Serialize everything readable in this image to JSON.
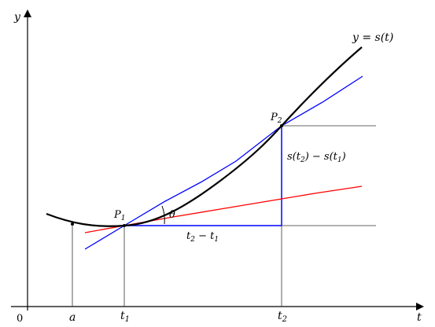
{
  "axes": {
    "y_label": "y",
    "t_label": "t",
    "origin_label": "0"
  },
  "ticks": {
    "a": "a",
    "t1": "t",
    "t1_sub": "1",
    "t2": "t",
    "t2_sub": "2"
  },
  "points": {
    "p1": "P",
    "p1_sub": "1",
    "p2": "P",
    "p2_sub": "2"
  },
  "curve_label": "y = s(t)",
  "angle_label": "θ",
  "delta_t": {
    "a": "t",
    "a_sub": "2",
    "minus": " − ",
    "b": "t",
    "b_sub": "1"
  },
  "delta_s": {
    "s1": "s(t",
    "s1_sub": "2",
    "mid": ") − s(t",
    "s2_sub": "1",
    "end": ")"
  },
  "colors": {
    "curve": "#000000",
    "secant": "#0000ff",
    "tangent": "#ff0000",
    "guide": "#333333",
    "box": "#0000ff"
  }
}
